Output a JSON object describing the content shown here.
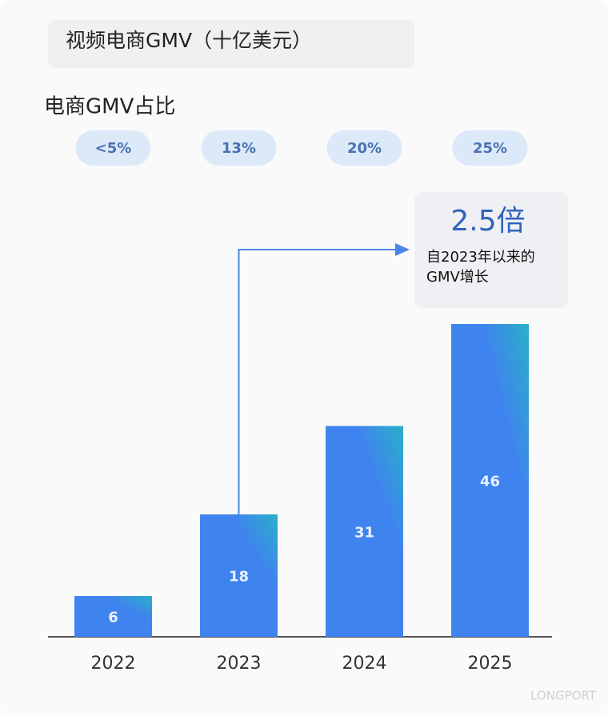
{
  "chart_data": {
    "type": "bar",
    "title": "视频电商GMV（十亿美元）",
    "subtitle": "电商GMV占比",
    "share_labels": [
      "<5%",
      "13%",
      "20%",
      "25%"
    ],
    "categories": [
      "2022",
      "2023",
      "2024",
      "2025"
    ],
    "values": [
      6,
      18,
      31,
      46
    ],
    "color": "#3f84ee",
    "annotation": {
      "headline": "2.5倍",
      "lines": [
        "自2023年以来的",
        "GMV增长"
      ]
    },
    "watermark": "LONGPORT"
  }
}
